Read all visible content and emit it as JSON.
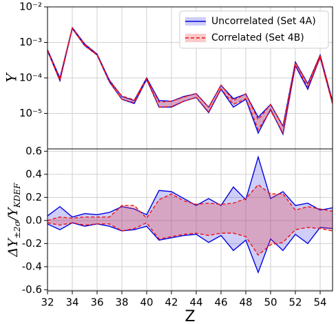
{
  "chart_data": [
    {
      "type": "band",
      "ylabel": "Y",
      "log_y": true,
      "grid": true,
      "legend": "upper right",
      "x": [
        32,
        33,
        34,
        35,
        36,
        37,
        38,
        39,
        40,
        41,
        42,
        43,
        44,
        45,
        46,
        47,
        48,
        49,
        50,
        51,
        52,
        53,
        54,
        55
      ],
      "xlim": [
        32,
        55
      ],
      "xticks": [
        32,
        34,
        36,
        38,
        40,
        42,
        44,
        46,
        48,
        50,
        52,
        54
      ],
      "ylim": [
        1e-06,
        0.01
      ],
      "yticks": [
        {
          "value": 0.01,
          "label": "10⁻²"
        },
        {
          "value": 0.001,
          "label": "10⁻³"
        },
        {
          "value": 0.0001,
          "label": "10⁻⁴"
        },
        {
          "value": 1e-05,
          "label": "10⁻⁵"
        }
      ],
      "series": [
        {
          "name": "Uncorrelated (Set 4A)",
          "color": "#0000dd",
          "fill": "rgba(60,60,230,0.25)",
          "dashed": false,
          "upper": [
            0.00062,
            0.0001,
            0.0026,
            0.0009,
            0.00047,
            8.6e-05,
            3e-05,
            2.3e-05,
            0.0001,
            2.3e-05,
            2.2e-05,
            3e-05,
            3.6e-05,
            1.5e-05,
            6.2e-05,
            2.6e-05,
            3.5e-05,
            7.8e-06,
            1.8e-05,
            4.4e-06,
            0.00028,
            6.9e-05,
            0.00044,
            2.2e-05
          ],
          "lower": [
            0.00058,
            8.3e-05,
            0.00245,
            0.00081,
            0.00044,
            7.6e-05,
            2.5e-05,
            1.9e-05,
            9e-05,
            1.5e-05,
            1.5e-05,
            2.2e-05,
            2.8e-05,
            1.05e-05,
            4.8e-05,
            1.5e-05,
            2.5e-05,
            2.8e-06,
            1.3e-05,
            2.6e-06,
            0.00022,
            4.8e-05,
            0.00038,
            1.9e-05
          ]
        },
        {
          "name": "Correlated (Set 4B)",
          "color": "#ee1111",
          "fill": "rgba(240,60,60,0.28)",
          "dashed": true,
          "upper": [
            0.0006,
            9.3e-05,
            0.00255,
            0.00088,
            0.00046,
            8.2e-05,
            3.1e-05,
            2.4e-05,
            9.7e-05,
            2.1e-05,
            2.2e-05,
            2.9e-05,
            3.6e-05,
            1.5e-05,
            6.3e-05,
            2.3e-05,
            3.6e-05,
            6.6e-06,
            1.8e-05,
            4.3e-06,
            0.00027,
            6.7e-05,
            0.00044,
            2.2e-05
          ],
          "lower": [
            0.00059,
            8.6e-05,
            0.00245,
            0.00082,
            0.00044,
            7.8e-05,
            2.5e-05,
            2e-05,
            9.3e-05,
            1.5e-05,
            1.55e-05,
            2.2e-05,
            2.8e-05,
            1.1e-05,
            4.9e-05,
            1.8e-05,
            2.6e-05,
            3.5e-06,
            1.2e-05,
            2.8e-06,
            0.00023,
            5.6e-05,
            0.00037,
            1.8e-05
          ]
        }
      ]
    },
    {
      "type": "band",
      "xlabel": "Z",
      "ylabel_parts": [
        "ΔY",
        "±2σ",
        "/Y",
        "KDEF"
      ],
      "log_y": false,
      "grid": true,
      "x": [
        32,
        33,
        34,
        35,
        36,
        37,
        38,
        39,
        40,
        41,
        42,
        43,
        44,
        45,
        46,
        47,
        48,
        49,
        50,
        51,
        52,
        53,
        54,
        55
      ],
      "xlim": [
        32,
        55
      ],
      "xticks": [
        32,
        34,
        36,
        38,
        40,
        42,
        44,
        46,
        48,
        50,
        52,
        54
      ],
      "ylim": [
        -0.61,
        0.62
      ],
      "yticks": [
        -0.6,
        -0.4,
        -0.2,
        {
          "value": 0,
          "label": "0.0"
        },
        0.2,
        0.4,
        0.6
      ],
      "series": [
        {
          "color": "#0000dd",
          "fill": "rgba(60,60,230,0.25)",
          "dashed": false,
          "upper": [
            0.04,
            0.12,
            0.03,
            0.06,
            0.05,
            0.07,
            0.12,
            0.1,
            0.05,
            0.26,
            0.25,
            0.19,
            0.13,
            0.19,
            0.13,
            0.29,
            0.18,
            0.55,
            0.19,
            0.25,
            0.13,
            0.15,
            0.09,
            0.11
          ],
          "lower": [
            -0.03,
            -0.08,
            -0.02,
            -0.05,
            -0.03,
            -0.05,
            -0.09,
            -0.08,
            -0.05,
            -0.17,
            -0.15,
            -0.13,
            -0.12,
            -0.19,
            -0.13,
            -0.26,
            -0.17,
            -0.45,
            -0.16,
            -0.26,
            -0.12,
            -0.2,
            -0.06,
            -0.07
          ]
        },
        {
          "color": "#ee1111",
          "fill": "rgba(240,60,60,0.28)",
          "dashed": true,
          "upper": [
            0.0,
            0.03,
            0.02,
            0.03,
            0.03,
            0.03,
            0.13,
            0.13,
            0.02,
            0.18,
            0.23,
            0.17,
            0.14,
            0.15,
            0.14,
            0.15,
            0.19,
            0.31,
            0.23,
            0.23,
            0.09,
            0.12,
            0.1,
            0.08
          ],
          "lower": [
            -0.02,
            -0.04,
            -0.02,
            -0.04,
            -0.03,
            -0.03,
            -0.09,
            -0.07,
            -0.02,
            -0.16,
            -0.14,
            -0.12,
            -0.11,
            -0.13,
            -0.11,
            -0.11,
            -0.14,
            -0.3,
            -0.21,
            -0.19,
            -0.08,
            -0.06,
            -0.07,
            -0.09
          ]
        }
      ]
    }
  ]
}
